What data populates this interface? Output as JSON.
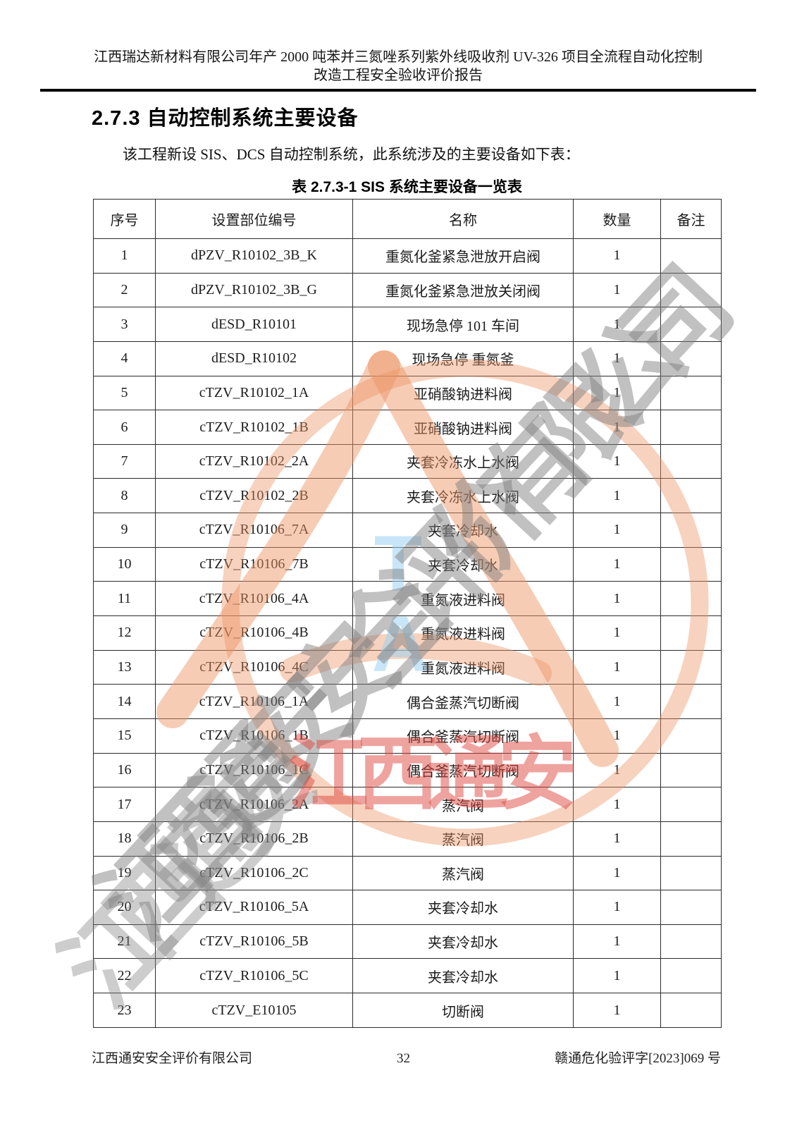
{
  "page_header": {
    "line1": "江西瑞达新材料有限公司年产 2000 吨苯并三氮唑系列紫外线吸收剂 UV-326 项目全流程自动化控制",
    "line2": "改造工程安全验收评价报告"
  },
  "section": {
    "heading": "2.7.3 自动控制系统主要设备",
    "intro": "该工程新设 SIS、DCS 自动控制系统，此系统涉及的主要设备如下表："
  },
  "table": {
    "title": "表 2.7.3-1  SIS 系统主要设备一览表",
    "headers": [
      "序号",
      "设置部位编号",
      "名称",
      "数量",
      "备注"
    ],
    "rows": [
      [
        "1",
        "dPZV_R10102_3B_K",
        "重氮化釜紧急泄放开启阀",
        "1",
        ""
      ],
      [
        "2",
        "dPZV_R10102_3B_G",
        "重氮化釜紧急泄放关闭阀",
        "1",
        ""
      ],
      [
        "3",
        "dESD_R10101",
        "现场急停 101 车间",
        "1",
        ""
      ],
      [
        "4",
        "dESD_R10102",
        "现场急停 重氮釜",
        "1",
        ""
      ],
      [
        "5",
        "cTZV_R10102_1A",
        "亚硝酸钠进料阀",
        "1",
        ""
      ],
      [
        "6",
        "cTZV_R10102_1B",
        "亚硝酸钠进料阀",
        "1",
        ""
      ],
      [
        "7",
        "cTZV_R10102_2A",
        "夹套冷冻水上水阀",
        "1",
        ""
      ],
      [
        "8",
        "cTZV_R10102_2B",
        "夹套冷冻水上水阀",
        "1",
        ""
      ],
      [
        "9",
        "cTZV_R10106_7A",
        "夹套冷却水",
        "1",
        ""
      ],
      [
        "10",
        "cTZV_R10106_7B",
        "夹套冷却水",
        "1",
        ""
      ],
      [
        "11",
        "cTZV_R10106_4A",
        "重氮液进料阀",
        "1",
        ""
      ],
      [
        "12",
        "cTZV_R10106_4B",
        "重氮液进料阀",
        "1",
        ""
      ],
      [
        "13",
        "cTZV_R10106_4C",
        "重氮液进料阀",
        "1",
        ""
      ],
      [
        "14",
        "cTZV_R10106_1A",
        "偶合釜蒸汽切断阀",
        "1",
        ""
      ],
      [
        "15",
        "cTZV_R10106_1B",
        "偶合釜蒸汽切断阀",
        "1",
        ""
      ],
      [
        "16",
        "cTZV_R10106_1C",
        "偶合釜蒸汽切断阀",
        "1",
        ""
      ],
      [
        "17",
        "cTZV_R10106_2A",
        "蒸汽阀",
        "1",
        ""
      ],
      [
        "18",
        "cTZV_R10106_2B",
        "蒸汽阀",
        "1",
        ""
      ],
      [
        "19",
        "cTZV_R10106_2C",
        "蒸汽阀",
        "1",
        ""
      ],
      [
        "20",
        "cTZV_R10106_5A",
        "夹套冷却水",
        "1",
        ""
      ],
      [
        "21",
        "cTZV_R10106_5B",
        "夹套冷却水",
        "1",
        ""
      ],
      [
        "22",
        "cTZV_R10106_5C",
        "夹套冷却水",
        "1",
        ""
      ],
      [
        "23",
        "cTZV_E10105",
        "切断阀",
        "1",
        ""
      ]
    ]
  },
  "footer": {
    "company": "江西通安安全评价有限公司",
    "page_number": "32",
    "doc_number": "赣通危化验评字[2023]069 号"
  },
  "watermark": {
    "diagonal_text": "江西通安安全评价有限公司",
    "diagonal_text_partial": "江西通安",
    "red_text": "江西通安",
    "logo_letter_top": "T",
    "logo_letter_bottom": "A",
    "colors": {
      "logo_orange": "#EC9464",
      "logo_blue": "#9BD2F0",
      "diagonal_gray": "#7D7D7D",
      "red": "#DD4840"
    }
  }
}
